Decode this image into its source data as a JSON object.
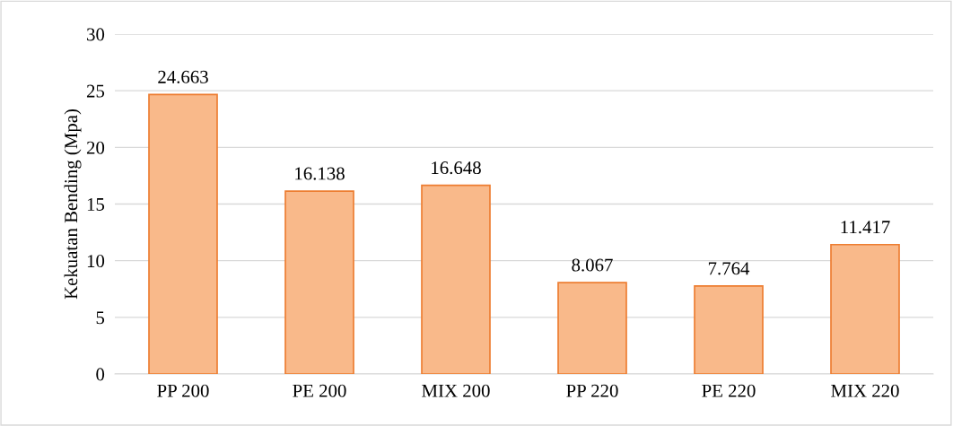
{
  "chart_data": {
    "type": "bar",
    "ylabel": "Kekuatan Bending (Mpa)",
    "categories": [
      "PP 200",
      "PE 200",
      "MIX 200",
      "PP 220",
      "PE 220",
      "MIX 220"
    ],
    "values": [
      24.663,
      16.138,
      16.648,
      8.067,
      7.764,
      11.417
    ],
    "color": "#f9b98a",
    "ylim": [
      0,
      30
    ],
    "yticks": [
      0,
      5,
      10,
      15,
      20,
      25,
      30
    ],
    "grid": "y",
    "data_labels": true
  }
}
